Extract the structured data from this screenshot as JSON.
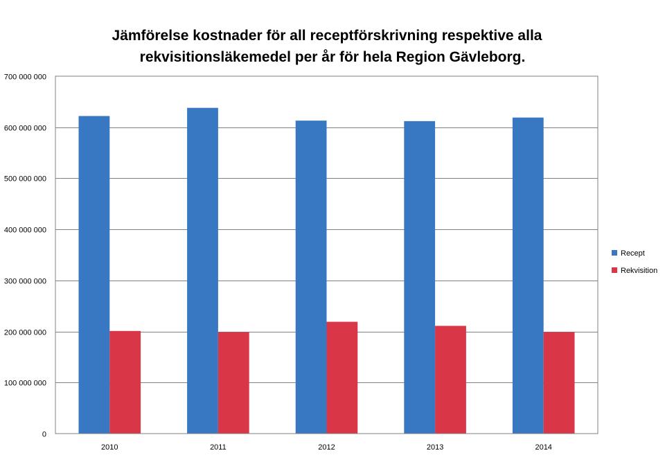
{
  "chart_data": {
    "type": "bar",
    "title_lines": [
      "Jämförelse kostnader för all receptförskrivning  respektive alla",
      "rekvisitionsläkemedel per år för hela Region Gävleborg."
    ],
    "categories": [
      "2010",
      "2011",
      "2012",
      "2013",
      "2014"
    ],
    "series": [
      {
        "name": "Recept",
        "color": "#3878c2",
        "values": [
          622000000,
          638000000,
          613000000,
          612000000,
          619000000
        ]
      },
      {
        "name": "Rekvisition",
        "color": "#d93647",
        "values": [
          201000000,
          199000000,
          219000000,
          211000000,
          199000000
        ]
      }
    ],
    "ylim": [
      0,
      700000000
    ],
    "yticks": [
      0,
      100000000,
      200000000,
      300000000,
      400000000,
      500000000,
      600000000,
      700000000
    ],
    "ytick_labels": [
      "0",
      "100 000 000",
      "200 000 000",
      "300 000 000",
      "400 000 000",
      "500 000 000",
      "600 000 000",
      "700 000 000"
    ],
    "grid": true,
    "legend_position": "right"
  }
}
